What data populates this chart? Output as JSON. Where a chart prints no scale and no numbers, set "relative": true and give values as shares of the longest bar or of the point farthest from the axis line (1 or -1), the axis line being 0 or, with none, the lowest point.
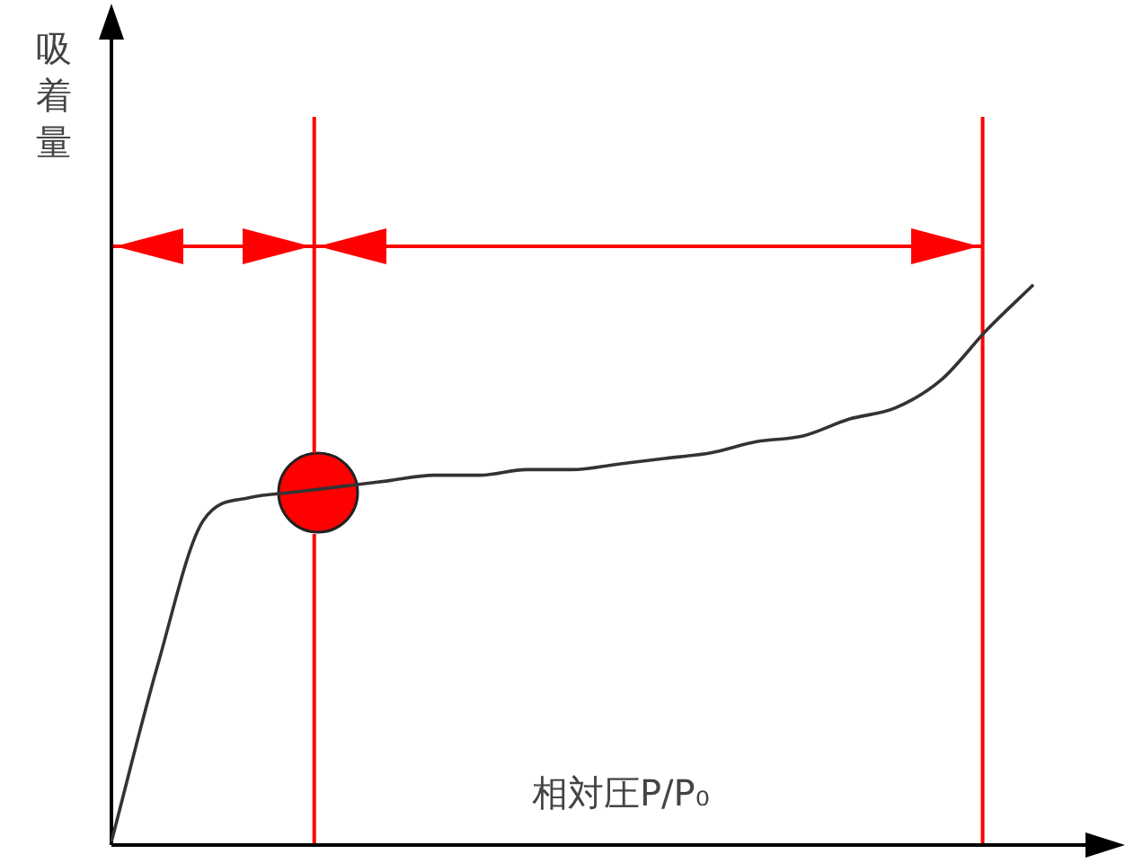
{
  "chart_data": {
    "type": "line",
    "xlabel": "相対圧P/P₀",
    "ylabel": "吸着量",
    "relative": true,
    "marker": "none",
    "line_style": "solid",
    "legend": false,
    "categories": [
      null,
      null,
      null,
      null,
      null,
      null,
      null,
      null,
      null,
      null,
      null,
      null,
      null,
      null,
      null,
      null,
      null,
      null,
      null,
      null,
      null
    ],
    "series": [
      {
        "color": "#333333",
        "values": [
          0.006,
          0.32,
          0.58,
          0.62,
          0.63,
          0.64,
          0.65,
          0.66,
          0.66,
          0.67,
          0.67,
          0.68,
          0.69,
          0.7,
          0.72,
          0.73,
          0.76,
          0.78,
          0.83,
          0.92,
          1
        ]
      }
    ]
  }
}
